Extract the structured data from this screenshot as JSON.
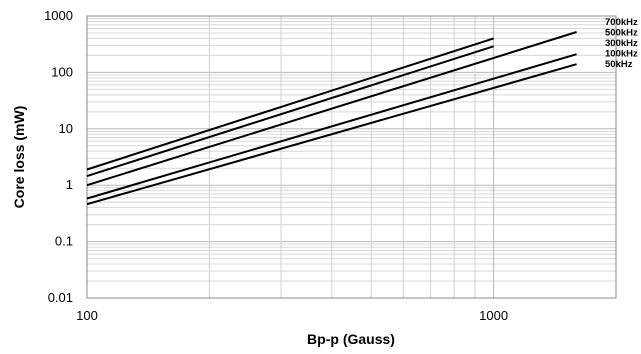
{
  "chart_data": {
    "type": "line",
    "xlabel": "Bp-p (Gauss)",
    "ylabel": "Core loss (mW)",
    "xscale": "log",
    "yscale": "log",
    "xlim": [
      100,
      2000
    ],
    "ylim": [
      0.01,
      1000
    ],
    "grid": true,
    "legend": "right-inline",
    "x_tick_labels": [
      "100",
      "1000"
    ],
    "y_tick_labels": [
      "0.01",
      "0.1",
      "1",
      "10",
      "100",
      "1000"
    ],
    "series": [
      {
        "name": "700kHz",
        "x": [
          100,
          1000
        ],
        "y": [
          1.9,
          400
        ]
      },
      {
        "name": "500kHz",
        "x": [
          100,
          1000
        ],
        "y": [
          1.45,
          290
        ]
      },
      {
        "name": "300kHz",
        "x": [
          100,
          1600
        ],
        "y": [
          1.0,
          520
        ]
      },
      {
        "name": "100kHz",
        "x": [
          100,
          1600
        ],
        "y": [
          0.58,
          210
        ]
      },
      {
        "name": "50kHz",
        "x": [
          100,
          1600
        ],
        "y": [
          0.46,
          140
        ]
      }
    ]
  }
}
